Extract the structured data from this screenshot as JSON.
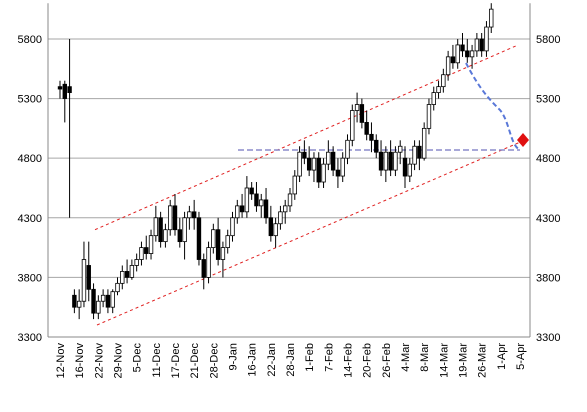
{
  "chart_data": {
    "type": "candlestick",
    "categories": [
      "12-Nov",
      null,
      null,
      null,
      "16-Nov",
      null,
      null,
      null,
      "22-Nov",
      null,
      null,
      null,
      "29-Nov",
      null,
      null,
      null,
      "5-Dec",
      null,
      null,
      null,
      "11-Dec",
      null,
      null,
      null,
      "17-Dec",
      null,
      null,
      null,
      "21-Dec",
      null,
      null,
      null,
      "28-Dec",
      null,
      null,
      null,
      "9-Jan",
      null,
      null,
      null,
      "16-Jan",
      null,
      null,
      null,
      "22-Jan",
      null,
      null,
      null,
      "28-Jan",
      null,
      null,
      null,
      "1-Feb",
      null,
      null,
      null,
      "7-Feb",
      null,
      null,
      null,
      "14-Feb",
      null,
      null,
      null,
      "20-Feb",
      null,
      null,
      null,
      "26-Feb",
      null,
      null,
      null,
      "4-Mar",
      null,
      null,
      null,
      "8-Mar",
      null,
      null,
      null,
      "14-Mar",
      null,
      null,
      null,
      "19-Mar",
      null,
      null,
      null,
      "26-Mar",
      null,
      null,
      null,
      "1-Apr",
      null,
      null,
      null,
      "5-Apr"
    ],
    "open": [
      5400,
      5420,
      5400,
      3650,
      3550,
      3600,
      3900,
      3700,
      3500,
      3600,
      3650,
      3550,
      3680,
      3750,
      3850,
      3800,
      3900,
      3950,
      4050,
      4000,
      4150,
      4300,
      4100,
      4200,
      4400,
      4200,
      4100,
      4300,
      4350,
      4300,
      3950,
      3800,
      4050,
      4200,
      3950,
      4050,
      4150,
      4300,
      4400,
      4350,
      4550,
      4500,
      4400,
      4450,
      4300,
      4150,
      4250,
      4350,
      4400,
      4500,
      4650,
      4850,
      4800,
      4700,
      4800,
      4600,
      4750,
      4850,
      4700,
      4650,
      4800,
      4950,
      5200,
      5250,
      5100,
      5000,
      4950,
      4850,
      4700,
      4850,
      4700,
      4850,
      4800,
      4650,
      4750,
      4900,
      4800,
      5050,
      5250,
      5350,
      5400,
      5500,
      5650,
      5600,
      5750,
      5700,
      5650,
      5700,
      5800,
      5700,
      5900,
      null,
      null,
      null,
      null,
      null,
      null
    ],
    "high": [
      5450,
      5450,
      5800,
      3700,
      3700,
      4100,
      4100,
      3750,
      3650,
      3700,
      3700,
      3700,
      3800,
      3900,
      3950,
      3950,
      4000,
      4100,
      4150,
      4200,
      4400,
      4350,
      4250,
      4450,
      4500,
      4300,
      4350,
      4400,
      4450,
      4350,
      4000,
      4100,
      4250,
      4300,
      4100,
      4200,
      4350,
      4450,
      4500,
      4650,
      4600,
      4600,
      4500,
      4550,
      4400,
      4300,
      4400,
      4450,
      4550,
      4700,
      4900,
      4950,
      4900,
      4850,
      4850,
      4800,
      4950,
      4900,
      4800,
      4850,
      5000,
      5250,
      5350,
      5300,
      5200,
      5100,
      5000,
      4950,
      4900,
      4950,
      4900,
      4950,
      4900,
      4800,
      4950,
      4950,
      5100,
      5300,
      5400,
      5450,
      5550,
      5700,
      5750,
      5800,
      5850,
      5800,
      5750,
      5850,
      5850,
      5950,
      6100,
      null,
      null,
      null,
      null,
      null,
      null
    ],
    "low": [
      5300,
      5100,
      4300,
      3500,
      3450,
      3550,
      3600,
      3450,
      3450,
      3550,
      3500,
      3500,
      3650,
      3700,
      3750,
      3780,
      3850,
      3900,
      3950,
      3950,
      4100,
      4050,
      4050,
      4150,
      4150,
      4050,
      3950,
      4200,
      4200,
      3900,
      3700,
      3750,
      4000,
      3900,
      3800,
      4000,
      4100,
      4250,
      4300,
      4300,
      4450,
      4350,
      4300,
      4250,
      4100,
      4050,
      4200,
      4250,
      4350,
      4450,
      4600,
      4750,
      4650,
      4600,
      4550,
      4550,
      4700,
      4650,
      4550,
      4600,
      4750,
      4900,
      5100,
      5050,
      4950,
      4850,
      4800,
      4650,
      4600,
      4650,
      4650,
      4750,
      4550,
      4600,
      4700,
      4700,
      4780,
      5000,
      5200,
      5300,
      5350,
      5450,
      5550,
      5550,
      5650,
      5600,
      5550,
      5650,
      5650,
      5650,
      5850,
      null,
      null,
      null,
      null,
      null,
      null
    ],
    "close": [
      5380,
      5300,
      5350,
      3550,
      3600,
      3950,
      3700,
      3500,
      3600,
      3650,
      3550,
      3680,
      3750,
      3850,
      3800,
      3900,
      3950,
      4050,
      4000,
      4150,
      4300,
      4100,
      4200,
      4400,
      4200,
      4100,
      4300,
      4350,
      4300,
      3950,
      3800,
      4050,
      4200,
      3950,
      4050,
      4150,
      4300,
      4400,
      4350,
      4550,
      4500,
      4400,
      4450,
      4300,
      4150,
      4250,
      4350,
      4400,
      4500,
      4650,
      4850,
      4800,
      4700,
      4800,
      4600,
      4750,
      4850,
      4700,
      4650,
      4800,
      4950,
      5200,
      5250,
      5100,
      5000,
      4950,
      4850,
      4700,
      4850,
      4700,
      4850,
      4900,
      4650,
      4750,
      4900,
      4800,
      5050,
      5250,
      5350,
      5400,
      5500,
      5650,
      5600,
      5750,
      5700,
      5650,
      5700,
      5800,
      5700,
      5900,
      6050,
      null,
      null,
      null,
      null,
      null,
      null
    ],
    "ylim": [
      3300,
      6100
    ],
    "yticks": [
      3300,
      3800,
      4300,
      4800,
      5300,
      5800
    ],
    "grid": true
  }
}
